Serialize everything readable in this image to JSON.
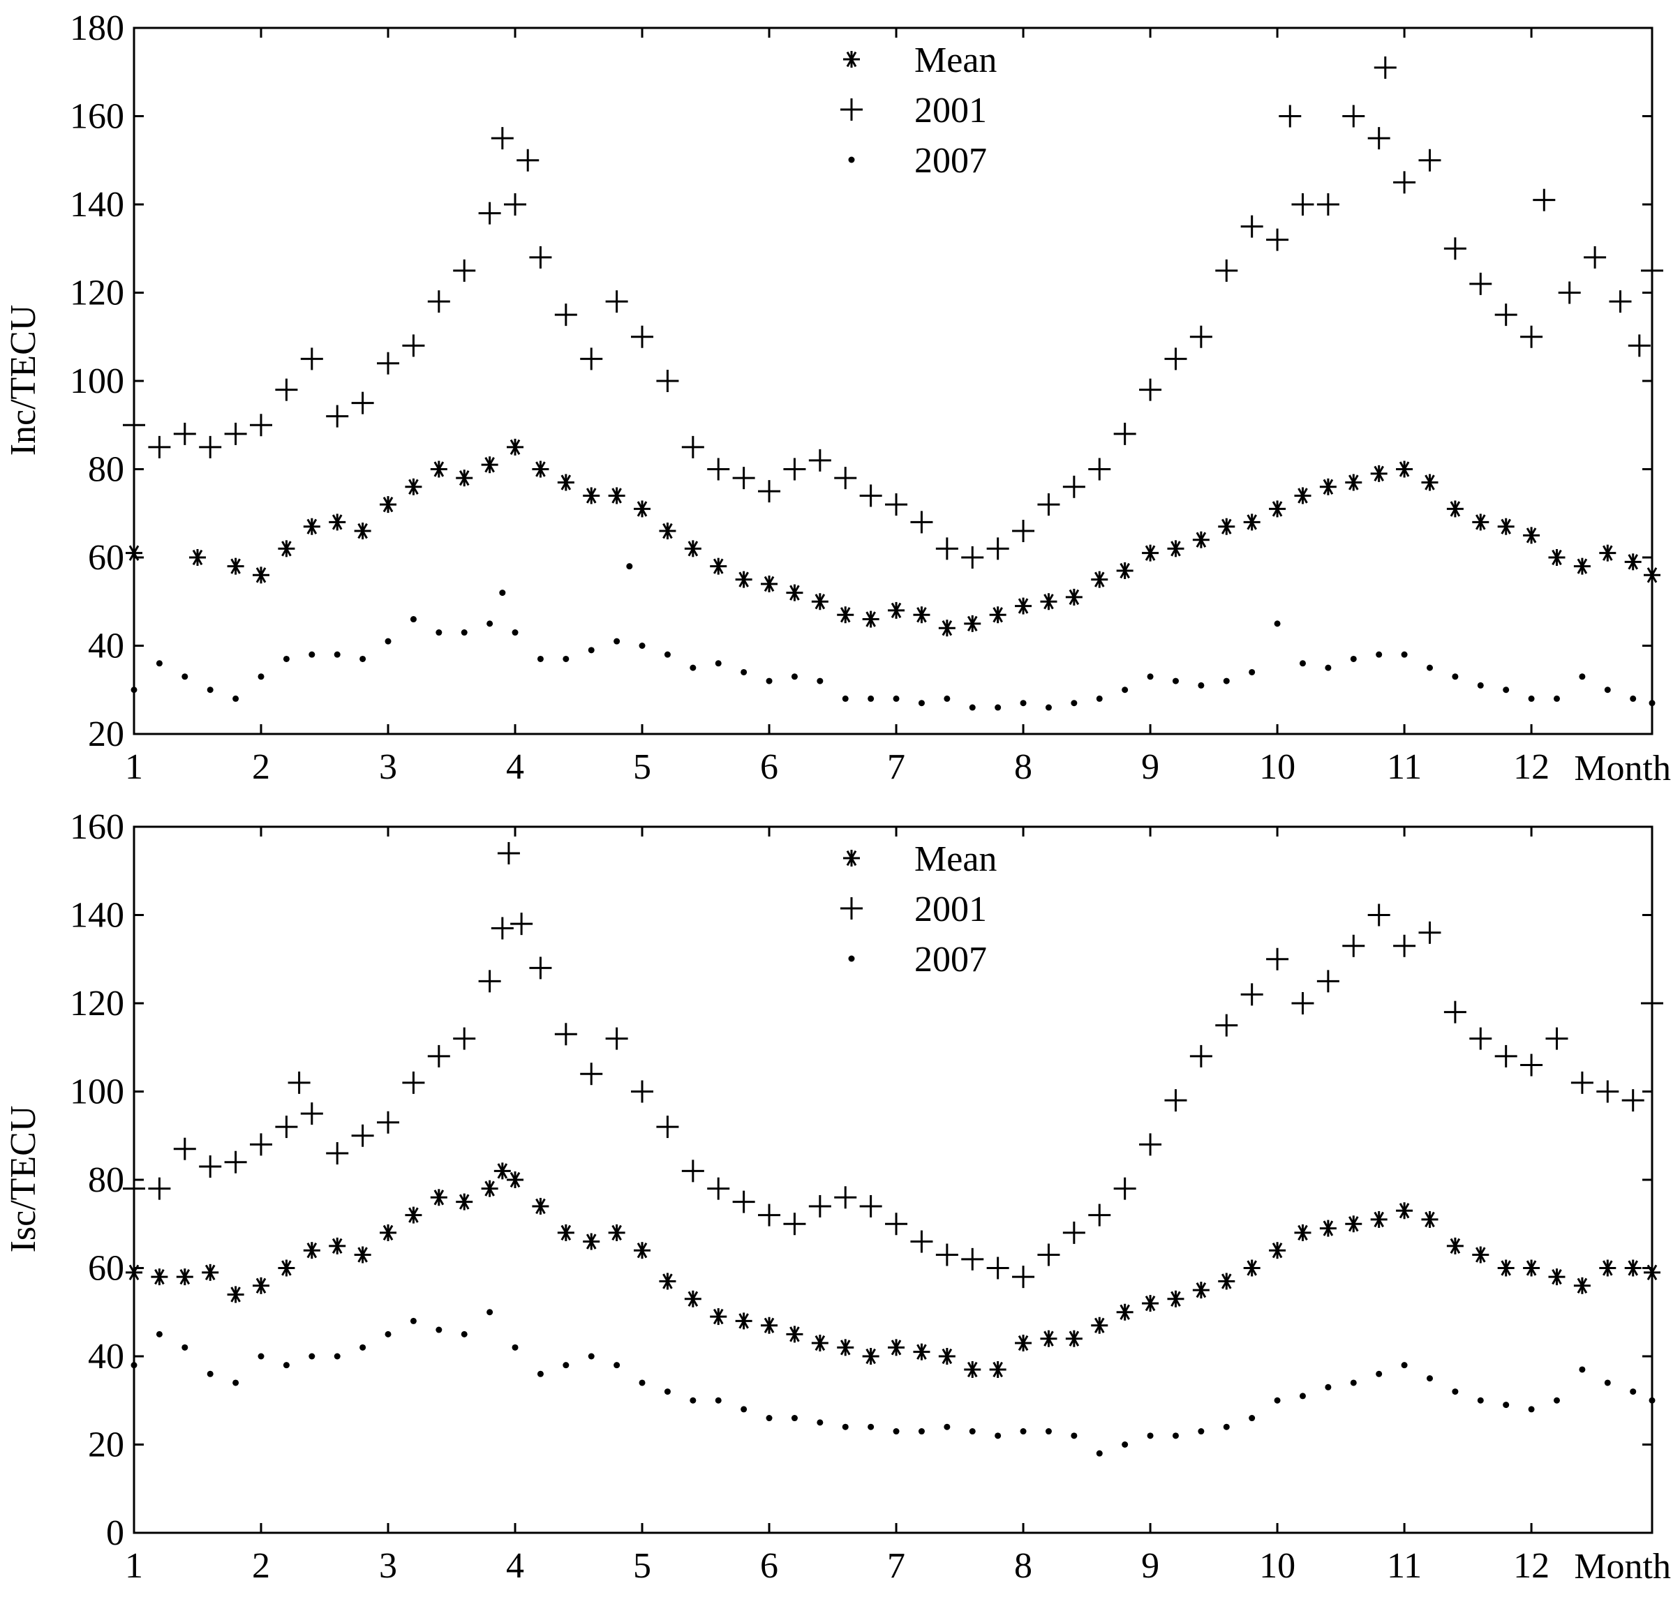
{
  "chart_data": [
    {
      "type": "scatter",
      "ylabel": "Inc/TECU",
      "xlabel": "Month",
      "xlim": [
        1,
        12.95
      ],
      "ylim": [
        20,
        180
      ],
      "yticks": [
        20,
        40,
        60,
        80,
        100,
        120,
        140,
        160,
        180
      ],
      "xticks": [
        1,
        2,
        3,
        4,
        5,
        6,
        7,
        8,
        9,
        10,
        11,
        12
      ],
      "legend": {
        "placement": "top-center",
        "entries": [
          "Mean",
          "2001",
          "2007"
        ]
      },
      "series": [
        {
          "name": "Mean",
          "marker": "asterisk",
          "x": [
            1.0,
            1.5,
            1.8,
            2.0,
            2.2,
            2.4,
            2.6,
            2.8,
            3.0,
            3.2,
            3.4,
            3.6,
            3.8,
            4.0,
            4.2,
            4.4,
            4.6,
            4.8,
            5.0,
            5.2,
            5.4,
            5.6,
            5.8,
            6.0,
            6.2,
            6.4,
            6.6,
            6.8,
            7.0,
            7.2,
            7.4,
            7.6,
            7.8,
            8.0,
            8.2,
            8.4,
            8.6,
            8.8,
            9.0,
            9.2,
            9.4,
            9.6,
            9.8,
            10.0,
            10.2,
            10.4,
            10.6,
            10.8,
            11.0,
            11.2,
            11.4,
            11.6,
            11.8,
            12.0,
            12.2,
            12.4,
            12.6,
            12.8,
            12.95
          ],
          "y": [
            61,
            60,
            58,
            56,
            62,
            67,
            68,
            66,
            72,
            76,
            80,
            78,
            81,
            85,
            80,
            77,
            74,
            74,
            71,
            66,
            62,
            58,
            55,
            54,
            52,
            50,
            47,
            46,
            48,
            47,
            44,
            45,
            47,
            49,
            50,
            51,
            55,
            57,
            61,
            62,
            64,
            67,
            68,
            71,
            74,
            76,
            77,
            79,
            80,
            77,
            71,
            68,
            67,
            65,
            60,
            58,
            61,
            59,
            56
          ]
        },
        {
          "name": "2001",
          "marker": "plus",
          "x": [
            1.0,
            1.2,
            1.4,
            1.6,
            1.8,
            2.0,
            2.2,
            2.4,
            2.6,
            2.8,
            3.0,
            3.2,
            3.4,
            3.6,
            3.8,
            3.9,
            4.0,
            4.1,
            4.2,
            4.4,
            4.6,
            4.8,
            5.0,
            5.2,
            5.4,
            5.6,
            5.8,
            6.0,
            6.2,
            6.4,
            6.6,
            6.8,
            7.0,
            7.2,
            7.4,
            7.6,
            7.8,
            8.0,
            8.2,
            8.4,
            8.6,
            8.8,
            9.0,
            9.2,
            9.4,
            9.6,
            9.8,
            10.0,
            10.1,
            10.2,
            10.4,
            10.6,
            10.8,
            10.85,
            11.0,
            11.2,
            11.4,
            11.6,
            11.8,
            12.0,
            12.1,
            12.3,
            12.5,
            12.7,
            12.85,
            12.95
          ],
          "y": [
            90,
            85,
            88,
            85,
            88,
            90,
            98,
            105,
            92,
            95,
            104,
            108,
            118,
            125,
            138,
            155,
            140,
            150,
            128,
            115,
            105,
            118,
            110,
            100,
            85,
            80,
            78,
            75,
            80,
            82,
            78,
            74,
            72,
            68,
            62,
            60,
            62,
            66,
            72,
            76,
            80,
            88,
            98,
            105,
            110,
            125,
            135,
            132,
            160,
            140,
            140,
            160,
            155,
            171,
            145,
            150,
            130,
            122,
            115,
            110,
            141,
            120,
            128,
            118,
            108,
            125
          ]
        },
        {
          "name": "2007",
          "marker": "dot",
          "x": [
            1.0,
            1.2,
            1.4,
            1.6,
            1.8,
            2.0,
            2.2,
            2.4,
            2.6,
            2.8,
            3.0,
            3.2,
            3.4,
            3.6,
            3.8,
            3.9,
            4.0,
            4.2,
            4.4,
            4.6,
            4.8,
            4.9,
            5.0,
            5.2,
            5.4,
            5.6,
            5.8,
            6.0,
            6.2,
            6.4,
            6.6,
            6.8,
            7.0,
            7.2,
            7.4,
            7.6,
            7.8,
            8.0,
            8.2,
            8.4,
            8.6,
            8.8,
            9.0,
            9.2,
            9.4,
            9.6,
            9.8,
            10.0,
            10.2,
            10.4,
            10.6,
            10.8,
            11.0,
            11.2,
            11.4,
            11.6,
            11.8,
            12.0,
            12.2,
            12.4,
            12.6,
            12.8,
            12.95
          ],
          "y": [
            30,
            36,
            33,
            30,
            28,
            33,
            37,
            38,
            38,
            37,
            41,
            46,
            43,
            43,
            45,
            52,
            43,
            37,
            37,
            39,
            41,
            58,
            40,
            38,
            35,
            36,
            34,
            32,
            33,
            32,
            28,
            28,
            28,
            27,
            28,
            26,
            26,
            27,
            26,
            27,
            28,
            30,
            33,
            32,
            31,
            32,
            34,
            45,
            36,
            35,
            37,
            38,
            38,
            35,
            33,
            31,
            30,
            28,
            28,
            33,
            30,
            28,
            27
          ]
        }
      ]
    },
    {
      "type": "scatter",
      "ylabel": "Isc/TECU",
      "xlabel": "Month",
      "xlim": [
        1,
        12.95
      ],
      "ylim": [
        0,
        160
      ],
      "yticks": [
        0,
        20,
        40,
        60,
        80,
        100,
        120,
        140,
        160
      ],
      "xticks": [
        1,
        2,
        3,
        4,
        5,
        6,
        7,
        8,
        9,
        10,
        11,
        12
      ],
      "legend": {
        "placement": "top-center",
        "entries": [
          "Mean",
          "2001",
          "2007"
        ]
      },
      "series": [
        {
          "name": "Mean",
          "marker": "asterisk",
          "x": [
            1.0,
            1.2,
            1.4,
            1.6,
            1.8,
            2.0,
            2.2,
            2.4,
            2.6,
            2.8,
            3.0,
            3.2,
            3.4,
            3.6,
            3.8,
            3.9,
            4.0,
            4.2,
            4.4,
            4.6,
            4.8,
            5.0,
            5.2,
            5.4,
            5.6,
            5.8,
            6.0,
            6.2,
            6.4,
            6.6,
            6.8,
            7.0,
            7.2,
            7.4,
            7.6,
            7.8,
            8.0,
            8.2,
            8.4,
            8.6,
            8.8,
            9.0,
            9.2,
            9.4,
            9.6,
            9.8,
            10.0,
            10.2,
            10.4,
            10.6,
            10.8,
            11.0,
            11.2,
            11.4,
            11.6,
            11.8,
            12.0,
            12.2,
            12.4,
            12.6,
            12.8,
            12.95
          ],
          "y": [
            59,
            58,
            58,
            59,
            54,
            56,
            60,
            64,
            65,
            63,
            68,
            72,
            76,
            75,
            78,
            82,
            80,
            74,
            68,
            66,
            68,
            64,
            57,
            53,
            49,
            48,
            47,
            45,
            43,
            42,
            40,
            42,
            41,
            40,
            37,
            37,
            43,
            44,
            44,
            47,
            50,
            52,
            53,
            55,
            57,
            60,
            64,
            68,
            69,
            70,
            71,
            73,
            71,
            65,
            63,
            60,
            60,
            58,
            56,
            60,
            60,
            59
          ]
        },
        {
          "name": "2001",
          "marker": "plus",
          "x": [
            1.0,
            1.2,
            1.4,
            1.6,
            1.8,
            2.0,
            2.2,
            2.3,
            2.4,
            2.6,
            2.8,
            3.0,
            3.2,
            3.4,
            3.6,
            3.8,
            3.9,
            3.95,
            4.05,
            4.2,
            4.4,
            4.6,
            4.8,
            5.0,
            5.2,
            5.4,
            5.6,
            5.8,
            6.0,
            6.2,
            6.4,
            6.6,
            6.8,
            7.0,
            7.2,
            7.4,
            7.6,
            7.8,
            8.0,
            8.2,
            8.4,
            8.6,
            8.8,
            9.0,
            9.2,
            9.4,
            9.6,
            9.8,
            10.0,
            10.2,
            10.4,
            10.6,
            10.8,
            11.0,
            11.2,
            11.4,
            11.6,
            11.8,
            12.0,
            12.2,
            12.4,
            12.6,
            12.8,
            12.95
          ],
          "y": [
            78,
            78,
            87,
            83,
            84,
            88,
            92,
            102,
            95,
            86,
            90,
            93,
            102,
            108,
            112,
            125,
            137,
            154,
            138,
            128,
            113,
            104,
            112,
            100,
            92,
            82,
            78,
            75,
            72,
            70,
            74,
            76,
            74,
            70,
            66,
            63,
            62,
            60,
            58,
            63,
            68,
            72,
            78,
            88,
            98,
            108,
            115,
            122,
            130,
            120,
            125,
            133,
            140,
            133,
            136,
            118,
            112,
            108,
            106,
            112,
            102,
            100,
            98,
            120
          ]
        },
        {
          "name": "2007",
          "marker": "dot",
          "x": [
            1.0,
            1.2,
            1.4,
            1.6,
            1.8,
            2.0,
            2.2,
            2.4,
            2.6,
            2.8,
            3.0,
            3.2,
            3.4,
            3.6,
            3.8,
            4.0,
            4.2,
            4.4,
            4.6,
            4.8,
            5.0,
            5.2,
            5.4,
            5.6,
            5.8,
            6.0,
            6.2,
            6.4,
            6.6,
            6.8,
            7.0,
            7.2,
            7.4,
            7.6,
            7.8,
            8.0,
            8.2,
            8.4,
            8.6,
            8.8,
            9.0,
            9.2,
            9.4,
            9.6,
            9.8,
            10.0,
            10.2,
            10.4,
            10.6,
            10.8,
            11.0,
            11.2,
            11.4,
            11.6,
            11.8,
            12.0,
            12.2,
            12.4,
            12.6,
            12.8,
            12.95
          ],
          "y": [
            38,
            45,
            42,
            36,
            34,
            40,
            38,
            40,
            40,
            42,
            45,
            48,
            46,
            45,
            50,
            42,
            36,
            38,
            40,
            38,
            34,
            32,
            30,
            30,
            28,
            26,
            26,
            25,
            24,
            24,
            23,
            23,
            24,
            23,
            22,
            23,
            23,
            22,
            18,
            20,
            22,
            22,
            23,
            24,
            26,
            30,
            31,
            33,
            34,
            36,
            38,
            35,
            32,
            30,
            29,
            28,
            30,
            37,
            34,
            32,
            30
          ]
        }
      ]
    }
  ]
}
